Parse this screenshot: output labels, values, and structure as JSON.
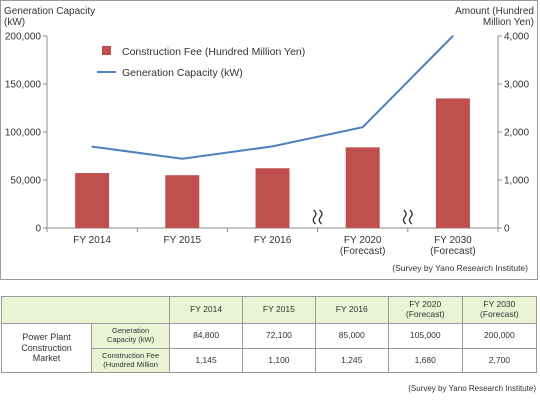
{
  "chart_data": {
    "type": "bar+line",
    "categories": [
      "FY 2014",
      "FY 2015",
      "FY 2016",
      "FY 2020\n(Forecast)",
      "FY 2030\n(Forecast)"
    ],
    "series": [
      {
        "name": "Construction Fee (Hundred Million Yen)",
        "type": "bar",
        "axis": "right",
        "values": [
          1145,
          1100,
          1245,
          1680,
          2700
        ],
        "color": "#c0504d"
      },
      {
        "name": "Generation Capacity (kW)",
        "type": "line",
        "axis": "left",
        "values": [
          84800,
          72100,
          85000,
          105000,
          200000
        ],
        "color": "#4f81bd"
      }
    ],
    "left_axis": {
      "title": "Generation Capacity\n(kW)",
      "ylim": [
        0,
        200000
      ],
      "ticks": [
        "0",
        "50,000",
        "100,000",
        "150,000",
        "200,000"
      ],
      "tick_values": [
        0,
        50000,
        100000,
        150000,
        200000
      ]
    },
    "right_axis": {
      "title": "Amount (Hundred\nMillion Yen)",
      "ylim": [
        0,
        4000
      ],
      "ticks": [
        "0",
        "1,000",
        "2,000",
        "3,000",
        "4,000"
      ],
      "tick_values": [
        0,
        1000,
        2000,
        3000,
        4000
      ]
    },
    "legend_position": "top-left",
    "grid": false,
    "axis_breaks": [
      "between FY 2016 and FY 2020",
      "between FY 2020 and FY 2030"
    ],
    "source": "(Survey by Yano Research Institute)"
  },
  "table": {
    "row_group_label": "Power Plant\nConstruction\nMarket",
    "headers": [
      "FY 2014",
      "FY 2015",
      "FY 2016",
      "FY 2020\n(Forecast)",
      "FY 2030\n(Forecast)"
    ],
    "rows": [
      {
        "label": "Generation\nCapacity (kW)",
        "values": [
          "84,800",
          "72,100",
          "85,000",
          "105,000",
          "200,000"
        ]
      },
      {
        "label": "Construction Fee\n(Hundred Million",
        "values": [
          "1,145",
          "1,100",
          "1,245",
          "1,680",
          "2,700"
        ]
      }
    ],
    "source": "(Survey by Yano Research Institute)"
  }
}
